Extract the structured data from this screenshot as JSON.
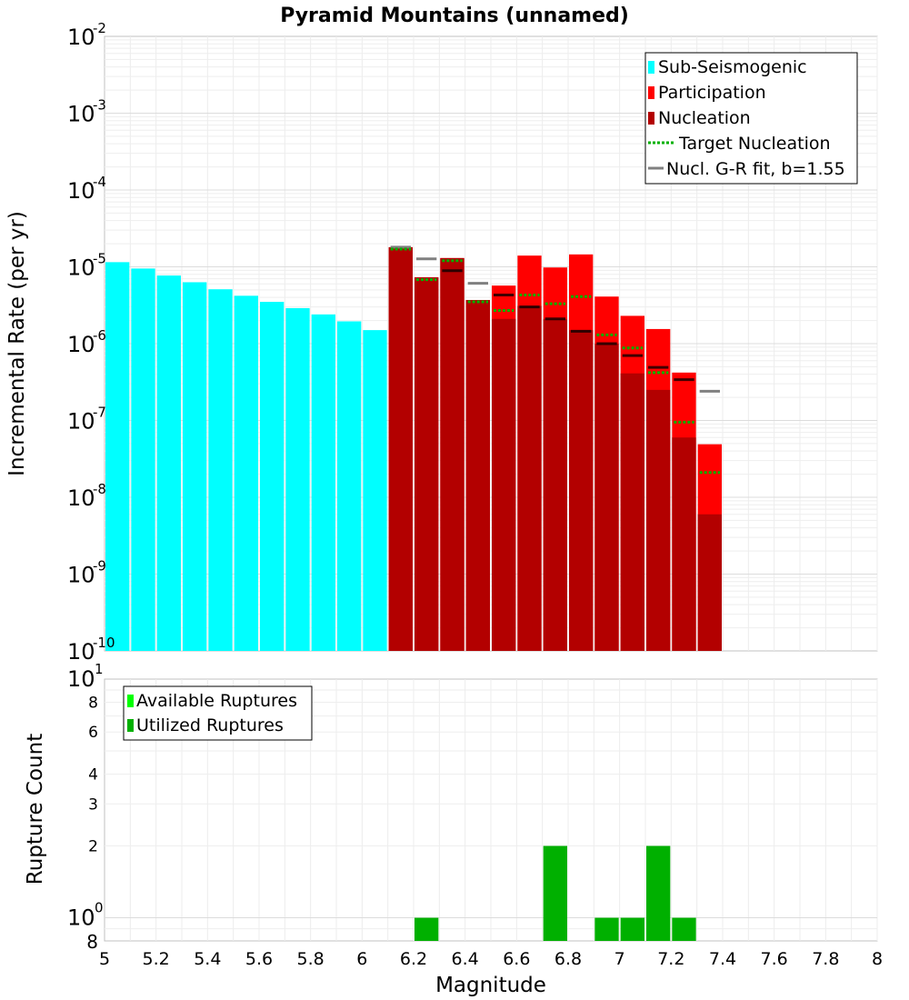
{
  "chart_data": [
    {
      "type": "bar",
      "title": "Pyramid Mountains (unnamed)",
      "xlabel": "Magnitude",
      "ylabel": "Incremental Rate (per yr)",
      "yscale": "log",
      "xlim": [
        5,
        8
      ],
      "ylim": [
        1e-10,
        0.01
      ],
      "bin_width": 0.1,
      "y_tick_exponents": [
        "-10",
        "-9",
        "-8",
        "-7",
        "-6",
        "-5",
        "-4",
        "-3",
        "-2"
      ],
      "legend": {
        "position": "top-right",
        "entries": [
          {
            "label": "Sub-Seismogenic",
            "color": "#00ffff",
            "style": "bar"
          },
          {
            "label": "Participation",
            "color": "#ff0000",
            "style": "bar"
          },
          {
            "label": "Nucleation",
            "color": "#b30000",
            "style": "bar"
          },
          {
            "label": "Target Nucleation",
            "color": "#00b000",
            "style": "dotted"
          },
          {
            "label": "Nucl. G-R fit, b=1.55",
            "color": "#808080",
            "style": "line"
          }
        ]
      },
      "series": [
        {
          "name": "Sub-Seismogenic",
          "x": [
            5.05,
            5.15,
            5.25,
            5.35,
            5.45,
            5.55,
            5.65,
            5.75,
            5.85,
            5.95,
            6.05
          ],
          "values": [
            1.15e-05,
            9.5e-06,
            7.7e-06,
            6.3e-06,
            5.1e-06,
            4.2e-06,
            3.5e-06,
            2.9e-06,
            2.4e-06,
            1.95e-06,
            1.5e-06
          ]
        },
        {
          "name": "Participation",
          "x": [
            6.15,
            6.25,
            6.35,
            6.45,
            6.55,
            6.65,
            6.75,
            6.85,
            6.95,
            7.05,
            7.15,
            7.25,
            7.35
          ],
          "values": [
            1.8e-05,
            7.3e-06,
            1.3e-05,
            3.7e-06,
            5.7e-06,
            1.4e-05,
            9.8e-06,
            1.45e-05,
            4.1e-06,
            2.3e-06,
            1.55e-06,
            4.2e-07,
            4.9e-08
          ]
        },
        {
          "name": "Nucleation",
          "x": [
            6.15,
            6.25,
            6.35,
            6.45,
            6.55,
            6.65,
            6.75,
            6.85,
            6.95,
            7.05,
            7.15,
            7.25,
            7.35
          ],
          "values": [
            1.8e-05,
            7.3e-06,
            1.3e-05,
            3.7e-06,
            2.1e-06,
            3.1e-06,
            2.1e-06,
            1.5e-06,
            1e-06,
            4.1e-07,
            2.5e-07,
            6e-08,
            6e-09
          ]
        },
        {
          "name": "Target Nucleation",
          "x": [
            6.15,
            6.25,
            6.35,
            6.45,
            6.55,
            6.65,
            6.75,
            6.85,
            6.95,
            7.05,
            7.15,
            7.25,
            7.35
          ],
          "values": [
            1.7e-05,
            6.8e-06,
            1.2e-05,
            3.5e-06,
            2.7e-06,
            4.3e-06,
            3.3e-06,
            4.1e-06,
            1.3e-06,
            8.8e-07,
            4.2e-07,
            9.5e-08,
            2.1e-08
          ]
        },
        {
          "name": "Nucl. G-R fit, b=1.55",
          "x": [
            6.15,
            6.25,
            6.35,
            6.45,
            6.55,
            6.65,
            6.75,
            6.85,
            6.95,
            7.05,
            7.15,
            7.25,
            7.35
          ],
          "values": [
            1.8e-05,
            1.27e-05,
            8.9e-06,
            6.1e-06,
            4.3e-06,
            3e-06,
            2.1e-06,
            1.45e-06,
            1e-06,
            7e-07,
            4.9e-07,
            3.4e-07,
            2.4e-07
          ]
        }
      ]
    },
    {
      "type": "bar",
      "xlabel": "Magnitude",
      "ylabel": "Rupture Count",
      "yscale": "log",
      "xlim": [
        5,
        8
      ],
      "ylim": [
        0.8,
        10
      ],
      "x_ticks": [
        "5",
        "5.2",
        "5.4",
        "5.6",
        "5.8",
        "6",
        "6.2",
        "6.4",
        "6.6",
        "6.8",
        "7",
        "7.2",
        "7.4",
        "7.6",
        "7.8",
        "8"
      ],
      "y_minor_ticks": [
        "8",
        "2",
        "3",
        "4",
        "6",
        "8"
      ],
      "y_major_ticks": [
        {
          "mantissa": "10",
          "exponent": "0"
        },
        {
          "mantissa": "10",
          "exponent": "1"
        }
      ],
      "legend": {
        "position": "top-left",
        "entries": [
          {
            "label": "Available Ruptures",
            "color": "#00ff00"
          },
          {
            "label": "Utilized Ruptures",
            "color": "#00b000"
          }
        ]
      },
      "series": [
        {
          "name": "Utilized Ruptures",
          "x": [
            6.25,
            6.75,
            6.95,
            7.05,
            7.15,
            7.25
          ],
          "values": [
            1,
            2,
            1,
            1,
            2,
            1
          ]
        }
      ]
    }
  ]
}
